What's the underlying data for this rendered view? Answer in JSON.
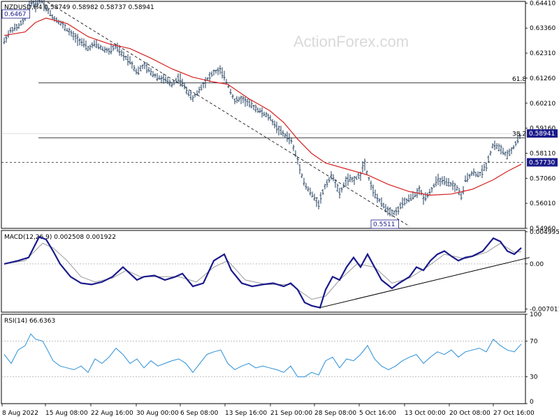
{
  "chart_data": [
    {
      "type": "candlestick",
      "title": "NZDUSD,H4  0.58749 0.58982 0.58737 0.58941",
      "watermark": "ActionForex.com",
      "timeframe": "H4",
      "ylim": [
        0.5496,
        0.6448
      ],
      "y_ticks": [
        "0.64410",
        "0.63360",
        "0.62310",
        "0.61260",
        "0.60210",
        "0.59160",
        "0.58110",
        "0.57060",
        "0.56010",
        "0.54960"
      ],
      "x_ticks": [
        "8 Aug 2022",
        "15 Aug 08:00",
        "22 Aug 16:00",
        "30 Aug 00:00",
        "6 Sep 08:00",
        "13 Sep 16:00",
        "21 Sep 00:00",
        "28 Sep 08:00",
        "5 Oct 16:00",
        "13 Oct 00:00",
        "20 Oct 08:00",
        "27 Oct 16:00"
      ],
      "price_path": [
        [
          0,
          0.628
        ],
        [
          10,
          0.633
        ],
        [
          20,
          0.634
        ],
        [
          30,
          0.638
        ],
        [
          38,
          0.645
        ],
        [
          45,
          0.643
        ],
        [
          52,
          0.646
        ],
        [
          60,
          0.642
        ],
        [
          70,
          0.638
        ],
        [
          80,
          0.636
        ],
        [
          90,
          0.633
        ],
        [
          100,
          0.63
        ],
        [
          110,
          0.628
        ],
        [
          120,
          0.625
        ],
        [
          130,
          0.627
        ],
        [
          140,
          0.625
        ],
        [
          150,
          0.624
        ],
        [
          160,
          0.626
        ],
        [
          170,
          0.622
        ],
        [
          180,
          0.62
        ],
        [
          190,
          0.615
        ],
        [
          200,
          0.618
        ],
        [
          210,
          0.615
        ],
        [
          220,
          0.613
        ],
        [
          230,
          0.612
        ],
        [
          240,
          0.61
        ],
        [
          250,
          0.613
        ],
        [
          260,
          0.608
        ],
        [
          270,
          0.604
        ],
        [
          280,
          0.608
        ],
        [
          290,
          0.612
        ],
        [
          300,
          0.615
        ],
        [
          310,
          0.616
        ],
        [
          320,
          0.61
        ],
        [
          330,
          0.603
        ],
        [
          340,
          0.604
        ],
        [
          350,
          0.602
        ],
        [
          360,
          0.6
        ],
        [
          370,
          0.598
        ],
        [
          380,
          0.596
        ],
        [
          390,
          0.592
        ],
        [
          400,
          0.589
        ],
        [
          410,
          0.587
        ],
        [
          420,
          0.578
        ],
        [
          430,
          0.568
        ],
        [
          440,
          0.564
        ],
        [
          450,
          0.56
        ],
        [
          460,
          0.568
        ],
        [
          470,
          0.572
        ],
        [
          480,
          0.564
        ],
        [
          490,
          0.57
        ],
        [
          500,
          0.57
        ],
        [
          510,
          0.572
        ],
        [
          515,
          0.578
        ],
        [
          520,
          0.572
        ],
        [
          530,
          0.564
        ],
        [
          540,
          0.56
        ],
        [
          550,
          0.557
        ],
        [
          560,
          0.556
        ],
        [
          570,
          0.56
        ],
        [
          580,
          0.562
        ],
        [
          590,
          0.564
        ],
        [
          595,
          0.566
        ],
        [
          600,
          0.562
        ],
        [
          610,
          0.565
        ],
        [
          620,
          0.57
        ],
        [
          630,
          0.569
        ],
        [
          640,
          0.568
        ],
        [
          650,
          0.566
        ],
        [
          655,
          0.562
        ],
        [
          660,
          0.57
        ],
        [
          670,
          0.573
        ],
        [
          680,
          0.572
        ],
        [
          690,
          0.576
        ],
        [
          700,
          0.585
        ],
        [
          710,
          0.583
        ],
        [
          720,
          0.58
        ],
        [
          730,
          0.584
        ],
        [
          740,
          0.5894
        ]
      ],
      "ma_path": [
        [
          0,
          0.6305
        ],
        [
          30,
          0.632
        ],
        [
          45,
          0.636
        ],
        [
          60,
          0.6378
        ],
        [
          90,
          0.6355
        ],
        [
          120,
          0.63
        ],
        [
          150,
          0.627
        ],
        [
          180,
          0.625
        ],
        [
          210,
          0.621
        ],
        [
          240,
          0.6165
        ],
        [
          270,
          0.613
        ],
        [
          300,
          0.611
        ],
        [
          320,
          0.61
        ],
        [
          350,
          0.604
        ],
        [
          380,
          0.599
        ],
        [
          400,
          0.594
        ],
        [
          420,
          0.587
        ],
        [
          440,
          0.581
        ],
        [
          460,
          0.577
        ],
        [
          490,
          0.5745
        ],
        [
          520,
          0.572
        ],
        [
          550,
          0.568
        ],
        [
          580,
          0.565
        ],
        [
          610,
          0.5635
        ],
        [
          640,
          0.564
        ],
        [
          670,
          0.566
        ],
        [
          700,
          0.57
        ],
        [
          720,
          0.5735
        ],
        [
          740,
          0.5765
        ]
      ],
      "annotations": {
        "high_label": "0.6467",
        "low_label": "0.5511",
        "fib_upper_label": "61.8",
        "fib_upper_value": 0.6106,
        "fib_lower_label": "38.2",
        "fib_lower_value": 0.5876,
        "dashed_level": 0.5773,
        "last_price_tag": "0.58941",
        "dashed_tag": "0.57730",
        "trendline": [
          [
            62,
            0.6445
          ],
          [
            580,
            0.5505
          ]
        ]
      }
    },
    {
      "type": "line",
      "label": "MACD(12,26,9) 0.002508 0.001922",
      "ylim": [
        -0.0075,
        0.0052
      ],
      "y_ticks": [
        "0.004995",
        "0.00",
        "-0.007011"
      ],
      "macd_path": [
        [
          0,
          0.0
        ],
        [
          20,
          0.0005
        ],
        [
          35,
          0.001
        ],
        [
          50,
          0.0042
        ],
        [
          60,
          0.0038
        ],
        [
          70,
          0.002
        ],
        [
          80,
          0.0
        ],
        [
          95,
          -0.002
        ],
        [
          110,
          -0.003
        ],
        [
          125,
          -0.0032
        ],
        [
          140,
          -0.0028
        ],
        [
          155,
          -0.002
        ],
        [
          170,
          -0.0005
        ],
        [
          180,
          -0.0015
        ],
        [
          190,
          -0.0025
        ],
        [
          200,
          -0.002
        ],
        [
          215,
          -0.0018
        ],
        [
          230,
          -0.0025
        ],
        [
          245,
          -0.002
        ],
        [
          255,
          -0.0015
        ],
        [
          270,
          -0.0035
        ],
        [
          285,
          -0.003
        ],
        [
          300,
          0.0005
        ],
        [
          315,
          0.0015
        ],
        [
          325,
          -0.001
        ],
        [
          340,
          -0.003
        ],
        [
          355,
          -0.0035
        ],
        [
          370,
          -0.0032
        ],
        [
          385,
          -0.003
        ],
        [
          400,
          -0.0035
        ],
        [
          410,
          -0.003
        ],
        [
          420,
          -0.004
        ],
        [
          430,
          -0.006
        ],
        [
          440,
          -0.0065
        ],
        [
          452,
          -0.0068
        ],
        [
          460,
          -0.004
        ],
        [
          470,
          -0.002
        ],
        [
          480,
          -0.0025
        ],
        [
          490,
          -0.0005
        ],
        [
          500,
          0.001
        ],
        [
          510,
          -0.0005
        ],
        [
          520,
          0.0015
        ],
        [
          530,
          -0.0005
        ],
        [
          540,
          -0.0025
        ],
        [
          555,
          -0.0038
        ],
        [
          565,
          -0.003
        ],
        [
          580,
          -0.002
        ],
        [
          590,
          -0.0005
        ],
        [
          600,
          -0.001
        ],
        [
          610,
          0.0005
        ],
        [
          620,
          0.0015
        ],
        [
          630,
          0.002
        ],
        [
          640,
          0.0012
        ],
        [
          650,
          0.0005
        ],
        [
          660,
          0.001
        ],
        [
          670,
          0.0012
        ],
        [
          685,
          0.002
        ],
        [
          700,
          0.004
        ],
        [
          710,
          0.0035
        ],
        [
          720,
          0.002
        ],
        [
          730,
          0.0015
        ],
        [
          740,
          0.0025
        ]
      ],
      "signal_path": [
        [
          0,
          0.0
        ],
        [
          30,
          0.0005
        ],
        [
          55,
          0.0032
        ],
        [
          70,
          0.0025
        ],
        [
          90,
          0.0005
        ],
        [
          110,
          -0.002
        ],
        [
          130,
          -0.0028
        ],
        [
          155,
          -0.0022
        ],
        [
          175,
          -0.001
        ],
        [
          195,
          -0.002
        ],
        [
          220,
          -0.002
        ],
        [
          250,
          -0.002
        ],
        [
          275,
          -0.0028
        ],
        [
          300,
          -0.0005
        ],
        [
          320,
          0.0005
        ],
        [
          345,
          -0.0025
        ],
        [
          375,
          -0.0032
        ],
        [
          410,
          -0.0032
        ],
        [
          440,
          -0.0055
        ],
        [
          460,
          -0.005
        ],
        [
          480,
          -0.0025
        ],
        [
          505,
          0.0
        ],
        [
          530,
          -0.0005
        ],
        [
          555,
          -0.003
        ],
        [
          580,
          -0.0022
        ],
        [
          605,
          -0.0005
        ],
        [
          630,
          0.0015
        ],
        [
          660,
          0.0008
        ],
        [
          690,
          0.0018
        ],
        [
          710,
          0.0032
        ],
        [
          730,
          0.0018
        ],
        [
          740,
          0.0019
        ]
      ],
      "trendline": [
        [
          452,
          -0.0068
        ],
        [
          752,
          0.001
        ]
      ]
    },
    {
      "type": "line",
      "label": "RSI(14) 66.6363",
      "ylim": [
        0,
        100
      ],
      "y_ticks": [
        "100",
        "70",
        "30",
        "0"
      ],
      "levels": [
        70,
        30
      ],
      "rsi_path": [
        [
          0,
          55
        ],
        [
          10,
          45
        ],
        [
          20,
          60
        ],
        [
          30,
          65
        ],
        [
          38,
          78
        ],
        [
          45,
          72
        ],
        [
          55,
          70
        ],
        [
          62,
          60
        ],
        [
          70,
          48
        ],
        [
          80,
          42
        ],
        [
          90,
          40
        ],
        [
          100,
          38
        ],
        [
          110,
          42
        ],
        [
          120,
          35
        ],
        [
          130,
          50
        ],
        [
          140,
          45
        ],
        [
          150,
          52
        ],
        [
          160,
          62
        ],
        [
          170,
          55
        ],
        [
          180,
          45
        ],
        [
          190,
          50
        ],
        [
          200,
          40
        ],
        [
          210,
          48
        ],
        [
          220,
          42
        ],
        [
          230,
          45
        ],
        [
          240,
          48
        ],
        [
          250,
          50
        ],
        [
          260,
          45
        ],
        [
          270,
          35
        ],
        [
          280,
          45
        ],
        [
          290,
          55
        ],
        [
          300,
          58
        ],
        [
          310,
          60
        ],
        [
          320,
          45
        ],
        [
          330,
          38
        ],
        [
          340,
          42
        ],
        [
          350,
          45
        ],
        [
          360,
          40
        ],
        [
          370,
          42
        ],
        [
          380,
          40
        ],
        [
          390,
          38
        ],
        [
          400,
          35
        ],
        [
          410,
          42
        ],
        [
          420,
          30
        ],
        [
          430,
          30
        ],
        [
          440,
          35
        ],
        [
          450,
          32
        ],
        [
          460,
          48
        ],
        [
          470,
          52
        ],
        [
          480,
          40
        ],
        [
          490,
          50
        ],
        [
          500,
          48
        ],
        [
          510,
          55
        ],
        [
          520,
          65
        ],
        [
          530,
          50
        ],
        [
          540,
          42
        ],
        [
          550,
          38
        ],
        [
          560,
          42
        ],
        [
          570,
          48
        ],
        [
          580,
          52
        ],
        [
          590,
          55
        ],
        [
          600,
          45
        ],
        [
          610,
          52
        ],
        [
          620,
          58
        ],
        [
          630,
          55
        ],
        [
          640,
          60
        ],
        [
          650,
          52
        ],
        [
          660,
          58
        ],
        [
          670,
          60
        ],
        [
          680,
          62
        ],
        [
          690,
          58
        ],
        [
          700,
          72
        ],
        [
          710,
          65
        ],
        [
          720,
          60
        ],
        [
          730,
          58
        ],
        [
          740,
          66.6
        ]
      ]
    }
  ]
}
